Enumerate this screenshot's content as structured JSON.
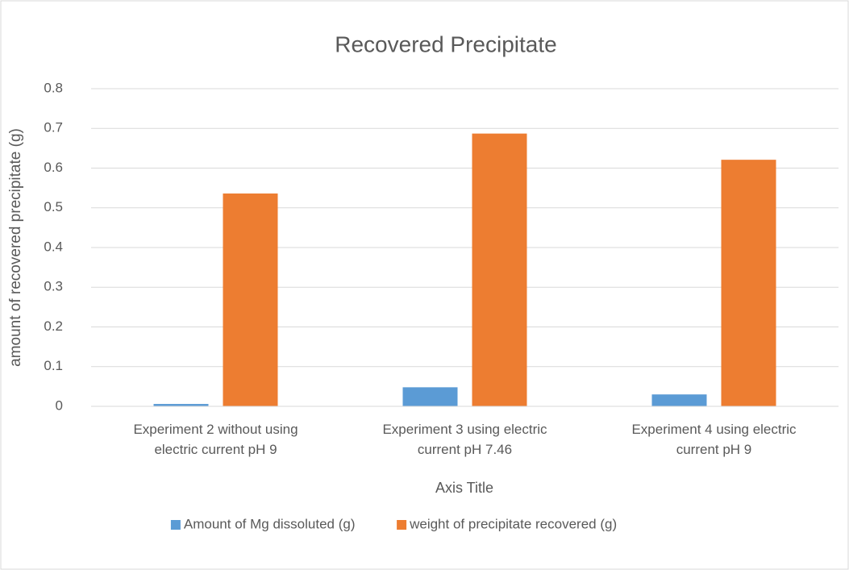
{
  "chart_data": {
    "type": "bar",
    "title": "Recovered Precipitate",
    "x_label": "Axis Title",
    "y_label": "amount of recovered precipitate (g)",
    "categories": [
      "Experiment 2 without using electric current pH 9",
      "Experiment 3  using electric current pH 7.46",
      "Experiment 4 using electric current pH 9"
    ],
    "series": [
      {
        "name": "Amount of Mg dissoluted (g)",
        "color": "#5b9bd5",
        "values": [
          0.006,
          0.048,
          0.03
        ]
      },
      {
        "name": "weight of precipitate recovered (g)",
        "color": "#ed7d31",
        "values": [
          0.536,
          0.687,
          0.621
        ]
      }
    ],
    "ylim": [
      0,
      0.8
    ],
    "yticks": [
      0,
      0.1,
      0.2,
      0.3,
      0.4,
      0.5,
      0.6,
      0.7,
      0.8
    ],
    "grid": true,
    "legend": "bottom"
  }
}
